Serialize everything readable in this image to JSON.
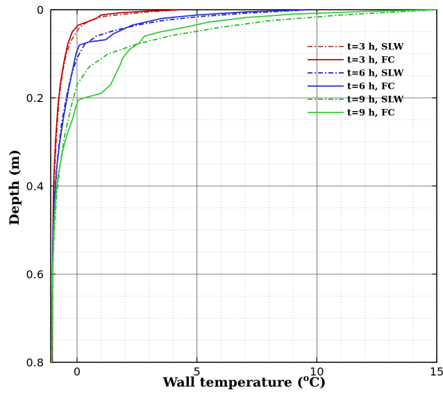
{
  "chart_data": {
    "type": "line",
    "title": "",
    "xlabel_main": "Wall temperature (",
    "xlabel_sup": "o",
    "xlabel_end": "C)",
    "ylabel": "Depth (m)",
    "xlim": [
      -1.1,
      15
    ],
    "ylim": [
      0,
      0.8
    ],
    "y_inverted": true,
    "x_ticks": [
      0,
      5,
      10,
      15
    ],
    "x_tick_labels": [
      "0",
      "5",
      "10",
      "15"
    ],
    "y_ticks": [
      0,
      0.2,
      0.4,
      0.6,
      0.8
    ],
    "y_tick_labels": [
      "0",
      "0.2",
      "0.4",
      "0.6",
      "0.8"
    ],
    "grid": true,
    "legend_position": "top-right",
    "series": [
      {
        "name": "t=3 h,  SLW",
        "color": "#c0392b",
        "dash": "dashdot",
        "points": [
          [
            4.3,
            0.0
          ],
          [
            3.0,
            0.005
          ],
          [
            2.0,
            0.01
          ],
          [
            1.0,
            0.016
          ],
          [
            0.5,
            0.025
          ],
          [
            0.1,
            0.04
          ],
          [
            -0.25,
            0.07
          ],
          [
            -0.45,
            0.1
          ],
          [
            -0.6,
            0.14
          ],
          [
            -0.75,
            0.2
          ],
          [
            -0.85,
            0.28
          ],
          [
            -0.95,
            0.38
          ],
          [
            -1.0,
            0.5
          ],
          [
            -1.02,
            0.65
          ],
          [
            -1.03,
            0.8
          ]
        ]
      },
      {
        "name": "t=3 h,  FC",
        "color": "#c00000",
        "dash": "solid",
        "points": [
          [
            4.4,
            0.0
          ],
          [
            3.0,
            0.003
          ],
          [
            1.8,
            0.007
          ],
          [
            1.0,
            0.012
          ],
          [
            0.8,
            0.02
          ],
          [
            0.4,
            0.028
          ],
          [
            0.05,
            0.035
          ],
          [
            -0.2,
            0.05
          ],
          [
            -0.4,
            0.08
          ],
          [
            -0.55,
            0.12
          ],
          [
            -0.7,
            0.17
          ],
          [
            -0.8,
            0.22
          ],
          [
            -0.9,
            0.3
          ],
          [
            -0.98,
            0.4
          ],
          [
            -1.02,
            0.55
          ],
          [
            -1.04,
            0.8
          ]
        ]
      },
      {
        "name": "t=6 h,  SLW",
        "color": "#2222cc",
        "dash": "dashdot",
        "points": [
          [
            9.7,
            0.0
          ],
          [
            7.0,
            0.008
          ],
          [
            5.0,
            0.016
          ],
          [
            3.5,
            0.025
          ],
          [
            2.5,
            0.035
          ],
          [
            1.5,
            0.048
          ],
          [
            0.8,
            0.06
          ],
          [
            0.3,
            0.08
          ],
          [
            0.0,
            0.11
          ],
          [
            -0.25,
            0.15
          ],
          [
            -0.45,
            0.2
          ],
          [
            -0.65,
            0.26
          ],
          [
            -0.8,
            0.33
          ],
          [
            -0.9,
            0.4
          ],
          [
            -0.98,
            0.5
          ],
          [
            -1.03,
            0.65
          ],
          [
            -1.05,
            0.8
          ]
        ]
      },
      {
        "name": "t=6 h,  FC",
        "color": "#2233dd",
        "dash": "solid",
        "points": [
          [
            9.7,
            0.0
          ],
          [
            7.0,
            0.005
          ],
          [
            5.0,
            0.012
          ],
          [
            3.5,
            0.02
          ],
          [
            2.3,
            0.035
          ],
          [
            1.5,
            0.055
          ],
          [
            1.2,
            0.068
          ],
          [
            0.5,
            0.073
          ],
          [
            0.1,
            0.08
          ],
          [
            -0.05,
            0.1
          ],
          [
            -0.2,
            0.14
          ],
          [
            -0.35,
            0.18
          ],
          [
            -0.55,
            0.24
          ],
          [
            -0.72,
            0.3
          ],
          [
            -0.85,
            0.36
          ],
          [
            -0.95,
            0.43
          ],
          [
            -1.0,
            0.5
          ],
          [
            -1.04,
            0.65
          ],
          [
            -1.06,
            0.8
          ]
        ]
      },
      {
        "name": "t=9 h,  SLW",
        "color": "#22bb22",
        "dash": "dashdot",
        "points": [
          [
            15.0,
            0.0
          ],
          [
            11.0,
            0.012
          ],
          [
            8.0,
            0.025
          ],
          [
            6.0,
            0.04
          ],
          [
            4.0,
            0.058
          ],
          [
            2.5,
            0.078
          ],
          [
            1.3,
            0.1
          ],
          [
            0.5,
            0.13
          ],
          [
            0.0,
            0.17
          ],
          [
            -0.25,
            0.22
          ],
          [
            -0.5,
            0.28
          ],
          [
            -0.7,
            0.35
          ],
          [
            -0.85,
            0.42
          ],
          [
            -0.95,
            0.5
          ],
          [
            -1.02,
            0.6
          ],
          [
            -1.05,
            0.7
          ],
          [
            -1.07,
            0.8
          ]
        ]
      },
      {
        "name": "t=9 h,  FC",
        "color": "#33cc33",
        "dash": "solid",
        "points": [
          [
            15.0,
            0.0
          ],
          [
            12.0,
            0.004
          ],
          [
            9.0,
            0.01
          ],
          [
            7.0,
            0.018
          ],
          [
            5.5,
            0.028
          ],
          [
            4.5,
            0.04
          ],
          [
            3.5,
            0.05
          ],
          [
            2.8,
            0.06
          ],
          [
            2.6,
            0.075
          ],
          [
            2.2,
            0.09
          ],
          [
            1.9,
            0.11
          ],
          [
            1.8,
            0.125
          ],
          [
            1.4,
            0.17
          ],
          [
            1.0,
            0.19
          ],
          [
            0.3,
            0.2
          ],
          [
            0.05,
            0.205
          ],
          [
            -0.05,
            0.22
          ],
          [
            -0.2,
            0.25
          ],
          [
            -0.4,
            0.28
          ],
          [
            -0.6,
            0.32
          ],
          [
            -0.8,
            0.38
          ],
          [
            -0.9,
            0.43
          ],
          [
            -0.97,
            0.5
          ],
          [
            -1.03,
            0.62
          ],
          [
            -1.06,
            0.8
          ]
        ]
      }
    ]
  }
}
